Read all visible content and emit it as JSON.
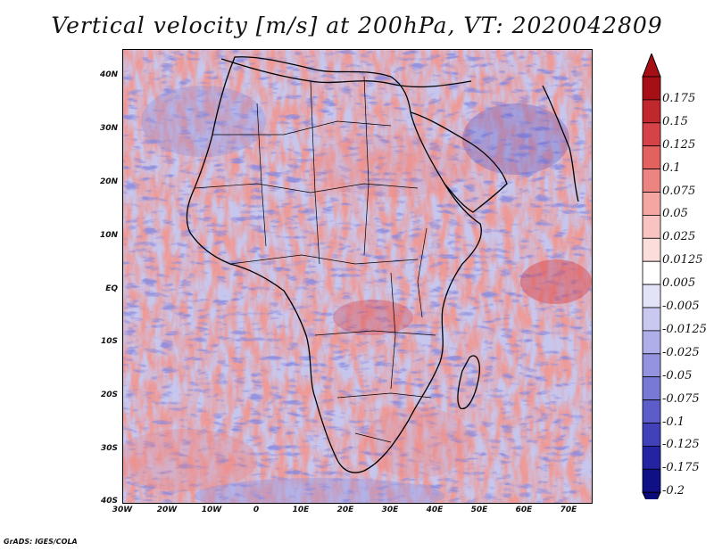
{
  "title": "Vertical velocity [m/s] at 200hPa, VT: 2020042809",
  "footer": "GrADS: IGES/COLA",
  "map": {
    "lon_range": [
      -30,
      75
    ],
    "lat_range": [
      -40,
      45
    ],
    "lat_ticks": [
      "40N",
      "30N",
      "20N",
      "10N",
      "EQ",
      "10S",
      "20S",
      "30S",
      "40S"
    ],
    "lon_ticks": [
      "30W",
      "20W",
      "10W",
      "0",
      "10E",
      "20E",
      "30E",
      "40E",
      "50E",
      "60E",
      "70E"
    ]
  },
  "colorbar": {
    "levels": [
      "0.175",
      "0.15",
      "0.125",
      "0.1",
      "0.075",
      "0.05",
      "0.025",
      "0.0125",
      "0.005",
      "-0.005",
      "-0.0125",
      "-0.025",
      "-0.05",
      "-0.075",
      "-0.1",
      "-0.125",
      "-0.175",
      "-0.2"
    ],
    "colors": [
      "#a50f15",
      "#c0282d",
      "#d54349",
      "#e3615f",
      "#ec8581",
      "#f3a6a2",
      "#f8c4c1",
      "#fbdedc",
      "#ffffff",
      "#e3e3f7",
      "#c8c8f0",
      "#aeaee9",
      "#9393e0",
      "#7878d5",
      "#5d5dc9",
      "#4141b9",
      "#2424a3",
      "#0f0f86"
    ]
  }
}
